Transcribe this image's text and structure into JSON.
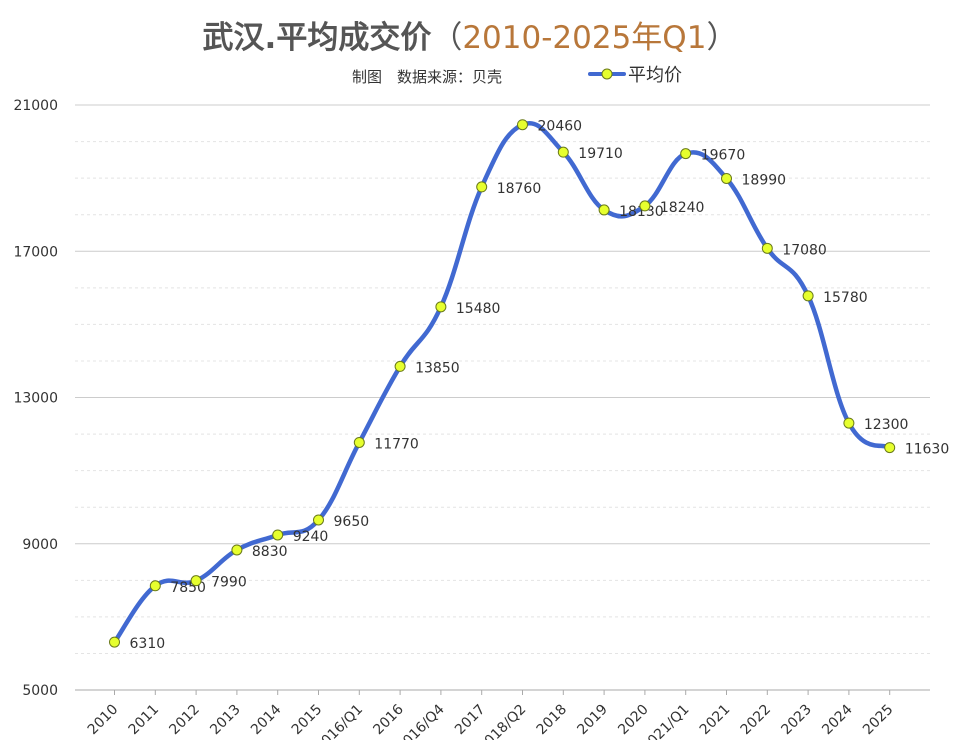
{
  "title": {
    "main": "武汉.平均成交价",
    "open_paren": "（",
    "sub": "2010-2025年Q1",
    "close_paren": "）"
  },
  "subtitle": "制图　数据来源：贝壳",
  "colors": {
    "line": "#4169d1",
    "marker_fill": "#e6ff2e",
    "marker_stroke": "#6a7a1a",
    "title_sub": "#b8773a",
    "grid": "#cccccc"
  },
  "chart_data": {
    "type": "line",
    "categories": [
      "2010",
      "2011",
      "2012",
      "2013",
      "2014",
      "2015",
      "2016/Q1",
      "2016",
      "2016/Q4",
      "2017",
      "2018/Q2",
      "2018",
      "2019",
      "2020",
      "2021/Q1",
      "2021",
      "2022",
      "2023",
      "2024",
      "2025"
    ],
    "series": [
      {
        "name": "平均价",
        "values": [
          6310,
          7850,
          7990,
          8830,
          9240,
          9650,
          11770,
          13850,
          15480,
          18760,
          20460,
          19710,
          18130,
          18240,
          19670,
          18990,
          17080,
          15780,
          12300,
          11630
        ]
      }
    ],
    "yticks": [
      "5000",
      "9000",
      "13000",
      "17000",
      "21000"
    ],
    "ylim": [
      5000,
      21000
    ],
    "grid": true,
    "smooth": true,
    "legend_position": "top-right"
  }
}
